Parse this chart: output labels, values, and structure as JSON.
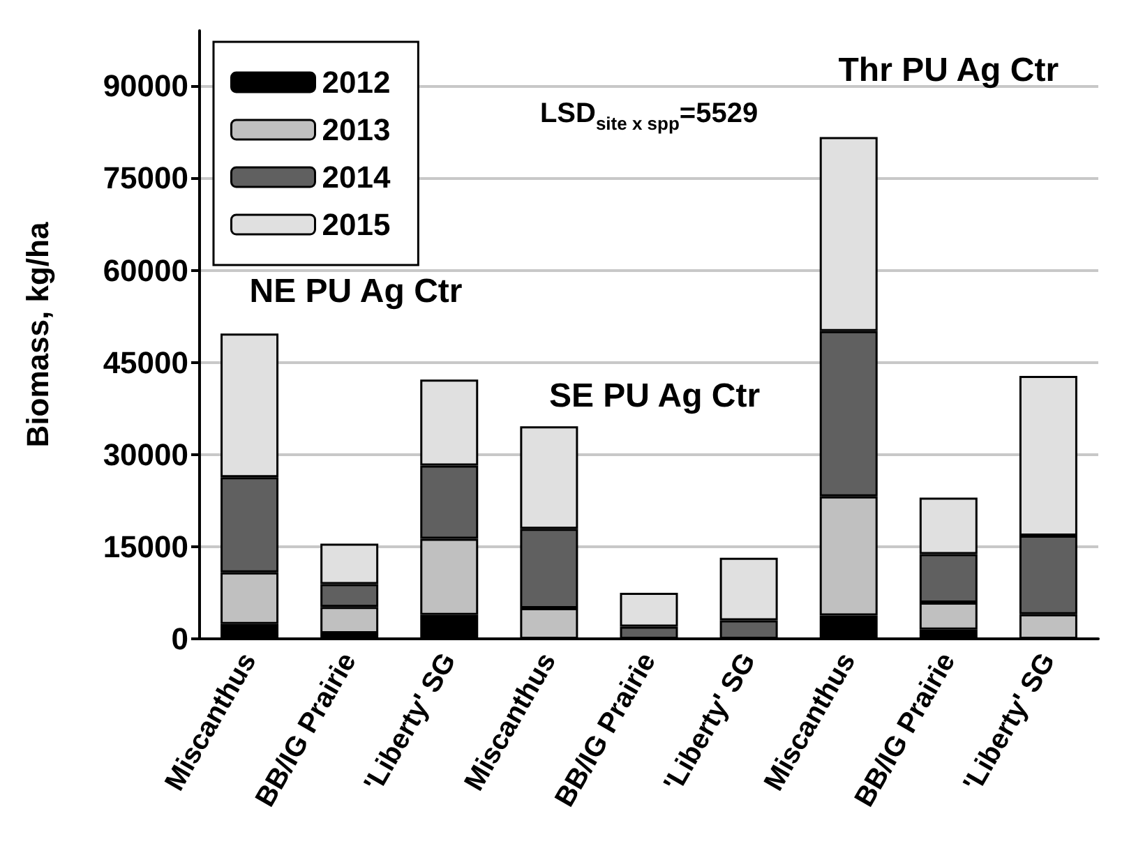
{
  "chart_data": {
    "type": "bar",
    "stacked": true,
    "ylabel": "Biomass, kg/ha",
    "categories": [
      "Miscanthus",
      "BB/IG Prairie",
      "'Liberty' SG",
      "Miscanthus",
      "BB/IG Prairie",
      "'Liberty' SG",
      "Miscanthus",
      "BB/IG Prairie",
      "'Liberty' SG"
    ],
    "series": [
      {
        "name": "2012",
        "color": "#000000",
        "values": [
          2400,
          900,
          3900,
          0,
          0,
          0,
          3800,
          1500,
          0
        ]
      },
      {
        "name": "2013",
        "color": "#c0c0c0",
        "values": [
          8400,
          4300,
          12400,
          5000,
          0,
          0,
          19400,
          4400,
          4000
        ]
      },
      {
        "name": "2014",
        "color": "#606060",
        "values": [
          15500,
          3700,
          11900,
          12900,
          2000,
          3000,
          26900,
          7900,
          12800
        ]
      },
      {
        "name": "2015",
        "color": "#e0e0e0",
        "values": [
          23400,
          6600,
          14000,
          16700,
          5500,
          10200,
          31600,
          9200,
          26000
        ]
      }
    ],
    "ylim": [
      0,
      99000
    ],
    "yticks": [
      0,
      15000,
      30000,
      45000,
      60000,
      75000,
      90000
    ],
    "grid": "y",
    "legend": "top left",
    "annotations": [
      "NE PU Ag Ctr",
      "SE PU Ag Ctr",
      "Thr PU Ag Ctr",
      "LSD$_{site x spp}$=5529"
    ]
  }
}
